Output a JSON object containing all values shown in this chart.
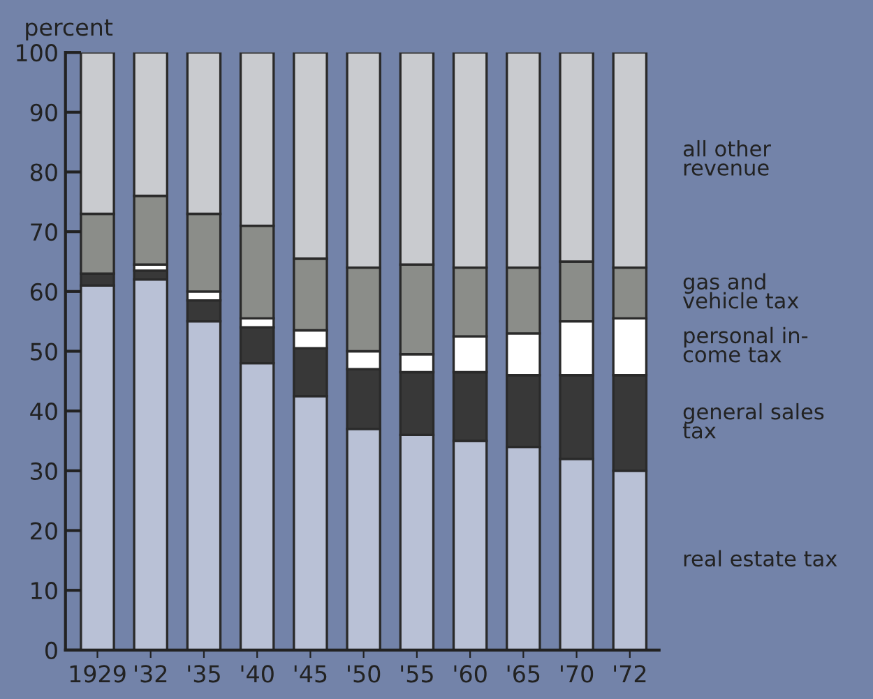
{
  "chart_data": {
    "type": "bar",
    "stacked": true,
    "ylabel": "percent",
    "categories": [
      "1929",
      "'32",
      "'35",
      "'40",
      "'45",
      "'50",
      "'55",
      "'60",
      "'65",
      "'70",
      "'72"
    ],
    "series": [
      {
        "name": "real estate tax",
        "color": "#b9c1d6",
        "values": [
          61,
          62,
          55,
          48,
          42.5,
          37,
          36,
          35,
          34,
          32,
          30
        ]
      },
      {
        "name": "general sales\ntax",
        "color": "#383838",
        "values": [
          2,
          1.5,
          3.5,
          6,
          8,
          10,
          10.5,
          11.5,
          12,
          14,
          16
        ]
      },
      {
        "name": "personal in-\ncome tax",
        "color": "#ffffff",
        "values": [
          0,
          1,
          1.5,
          1.5,
          3,
          3,
          3,
          6,
          7,
          9,
          9.5
        ]
      },
      {
        "name": "gas and\nvehicle tax",
        "color": "#8b8d89",
        "values": [
          10,
          11.5,
          13,
          15.5,
          12,
          14,
          15,
          11.5,
          11,
          10,
          8.5
        ]
      },
      {
        "name": "all other\nrevenue",
        "color": "#c9cbcf",
        "values": [
          27,
          24,
          27,
          29,
          34.5,
          36,
          35.5,
          36,
          36,
          35,
          36
        ]
      }
    ],
    "ylim": [
      0,
      100
    ],
    "yticks": [
      0,
      10,
      20,
      30,
      40,
      50,
      60,
      70,
      80,
      90,
      100
    ],
    "grid": false
  }
}
